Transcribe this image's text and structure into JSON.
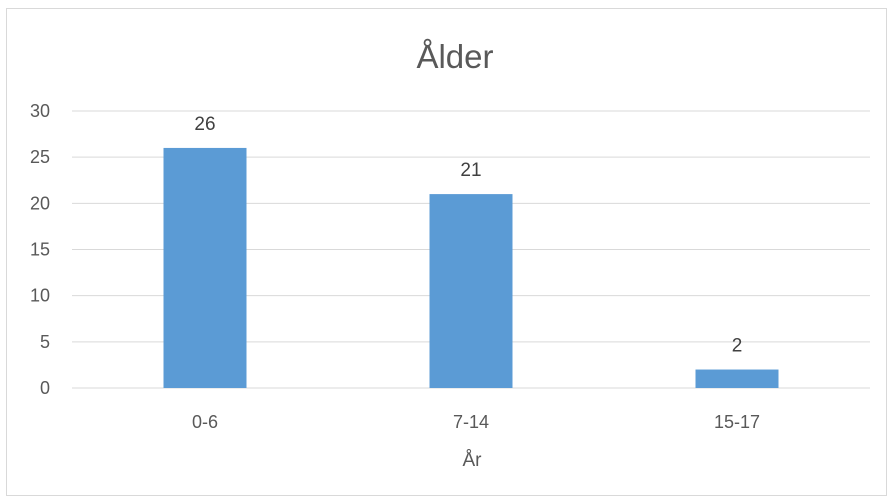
{
  "chart_data": {
    "type": "bar",
    "title": "Ålder",
    "xlabel": "År",
    "ylabel": "",
    "categories": [
      "0-6",
      "7-14",
      "15-17"
    ],
    "values": [
      26,
      21,
      2
    ],
    "data_labels": [
      "26",
      "21",
      "2"
    ],
    "ylim": [
      0,
      30
    ],
    "yticks": [
      "0",
      "5",
      "10",
      "15",
      "20",
      "25",
      "30"
    ],
    "grid": true,
    "legend": "none",
    "bar_color": "#5b9bd5",
    "grid_color": "#d9d9d9"
  }
}
